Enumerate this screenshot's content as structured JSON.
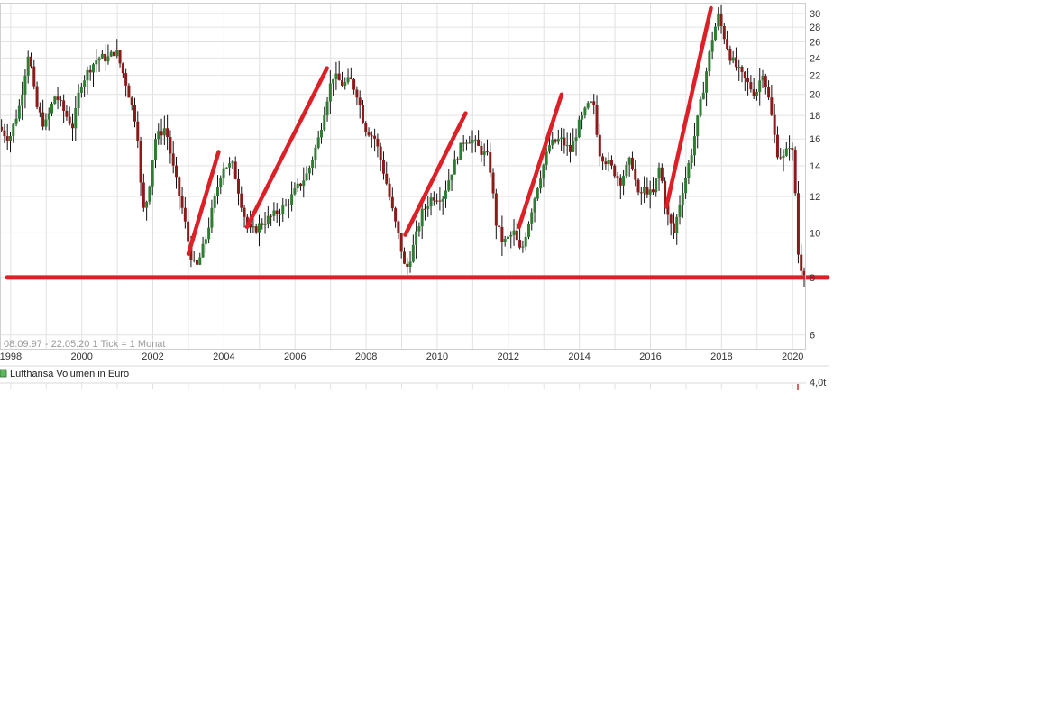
{
  "chart_data": {
    "type": "candlestick",
    "title": "",
    "info_text": "08.09.97 - 22.05.20   1 Tick = 1 Monat",
    "y_scale": "log",
    "ylim": [
      5.6,
      31.5
    ],
    "xlim": [
      1997.7,
      2020.35
    ],
    "y_ticks": [
      6,
      8,
      10,
      12,
      14,
      16,
      18,
      20,
      22,
      24,
      26,
      28,
      30
    ],
    "x_ticks": [
      1998,
      2000,
      2002,
      2004,
      2006,
      2008,
      2010,
      2012,
      2014,
      2016,
      2018,
      2020
    ],
    "legend": {
      "label": "Lufthansa Volumen in Euro",
      "color": "#5cb85c"
    },
    "volume_axis_label": "4,0t",
    "colors": {
      "up": "#2f7d32",
      "down": "#8b1a1a",
      "wick": "#111111",
      "annotation": "#dd1f26",
      "grid": "#e2e2e2"
    },
    "price_path": [
      [
        1997.7,
        17
      ],
      [
        1998.0,
        16
      ],
      [
        1998.3,
        19
      ],
      [
        1998.55,
        25
      ],
      [
        1998.75,
        19
      ],
      [
        1999.0,
        17
      ],
      [
        1999.3,
        20
      ],
      [
        1999.6,
        18
      ],
      [
        1999.8,
        17
      ],
      [
        2000.0,
        21
      ],
      [
        2000.3,
        23
      ],
      [
        2000.5,
        24
      ],
      [
        2000.8,
        24
      ],
      [
        2001.0,
        25
      ],
      [
        2001.3,
        21
      ],
      [
        2001.6,
        17
      ],
      [
        2001.75,
        11
      ],
      [
        2001.9,
        12
      ],
      [
        2002.1,
        16
      ],
      [
        2002.4,
        17
      ],
      [
        2002.6,
        14
      ],
      [
        2002.9,
        11
      ],
      [
        2003.1,
        9
      ],
      [
        2003.25,
        8.3
      ],
      [
        2003.5,
        9.5
      ],
      [
        2003.8,
        12
      ],
      [
        2004.0,
        14
      ],
      [
        2004.3,
        14
      ],
      [
        2004.6,
        11
      ],
      [
        2004.8,
        10
      ],
      [
        2005.1,
        10.5
      ],
      [
        2005.5,
        11
      ],
      [
        2005.8,
        11.5
      ],
      [
        2006.1,
        12.5
      ],
      [
        2006.4,
        13.5
      ],
      [
        2006.7,
        16
      ],
      [
        2006.9,
        19
      ],
      [
        2007.1,
        22
      ],
      [
        2007.4,
        21
      ],
      [
        2007.6,
        21.5
      ],
      [
        2007.8,
        20
      ],
      [
        2008.0,
        17
      ],
      [
        2008.3,
        16
      ],
      [
        2008.6,
        13
      ],
      [
        2008.8,
        11
      ],
      [
        2009.0,
        9.5
      ],
      [
        2009.15,
        8.2
      ],
      [
        2009.4,
        9.5
      ],
      [
        2009.6,
        11
      ],
      [
        2009.9,
        12
      ],
      [
        2010.2,
        12
      ],
      [
        2010.5,
        14
      ],
      [
        2010.8,
        16
      ],
      [
        2011.0,
        16
      ],
      [
        2011.3,
        15
      ],
      [
        2011.5,
        14.5
      ],
      [
        2011.7,
        10.5
      ],
      [
        2011.9,
        9.5
      ],
      [
        2012.2,
        10
      ],
      [
        2012.4,
        9
      ],
      [
        2012.6,
        10.5
      ],
      [
        2012.9,
        13
      ],
      [
        2013.2,
        15.5
      ],
      [
        2013.5,
        16
      ],
      [
        2013.8,
        15
      ],
      [
        2014.0,
        17
      ],
      [
        2014.3,
        19
      ],
      [
        2014.45,
        19
      ],
      [
        2014.6,
        15
      ],
      [
        2014.9,
        14
      ],
      [
        2015.2,
        13
      ],
      [
        2015.5,
        14.5
      ],
      [
        2015.7,
        12
      ],
      [
        2015.9,
        12.5
      ],
      [
        2016.1,
        12
      ],
      [
        2016.3,
        14
      ],
      [
        2016.5,
        11
      ],
      [
        2016.7,
        10
      ],
      [
        2016.9,
        12
      ],
      [
        2017.2,
        15
      ],
      [
        2017.5,
        20
      ],
      [
        2017.8,
        27
      ],
      [
        2017.95,
        29.5
      ],
      [
        2018.1,
        27
      ],
      [
        2018.3,
        24
      ],
      [
        2018.6,
        22
      ],
      [
        2018.8,
        21
      ],
      [
        2019.0,
        20
      ],
      [
        2019.2,
        22.5
      ],
      [
        2019.4,
        19
      ],
      [
        2019.6,
        15
      ],
      [
        2019.8,
        14.5
      ],
      [
        2020.0,
        16
      ],
      [
        2020.1,
        13
      ],
      [
        2020.2,
        9
      ],
      [
        2020.3,
        8.3
      ]
    ],
    "annotations": {
      "horizontal_level": 8,
      "trend_lines": [
        {
          "x1": 2003.0,
          "y1": 9.0,
          "x2": 2003.85,
          "y2": 15.0
        },
        {
          "x1": 2004.65,
          "y1": 10.3,
          "x2": 2006.9,
          "y2": 22.8
        },
        {
          "x1": 2009.1,
          "y1": 9.9,
          "x2": 2010.8,
          "y2": 18.2
        },
        {
          "x1": 2012.3,
          "y1": 10.3,
          "x2": 2013.5,
          "y2": 20.0
        },
        {
          "x1": 2016.45,
          "y1": 11.4,
          "x2": 2017.7,
          "y2": 30.8
        }
      ]
    }
  }
}
